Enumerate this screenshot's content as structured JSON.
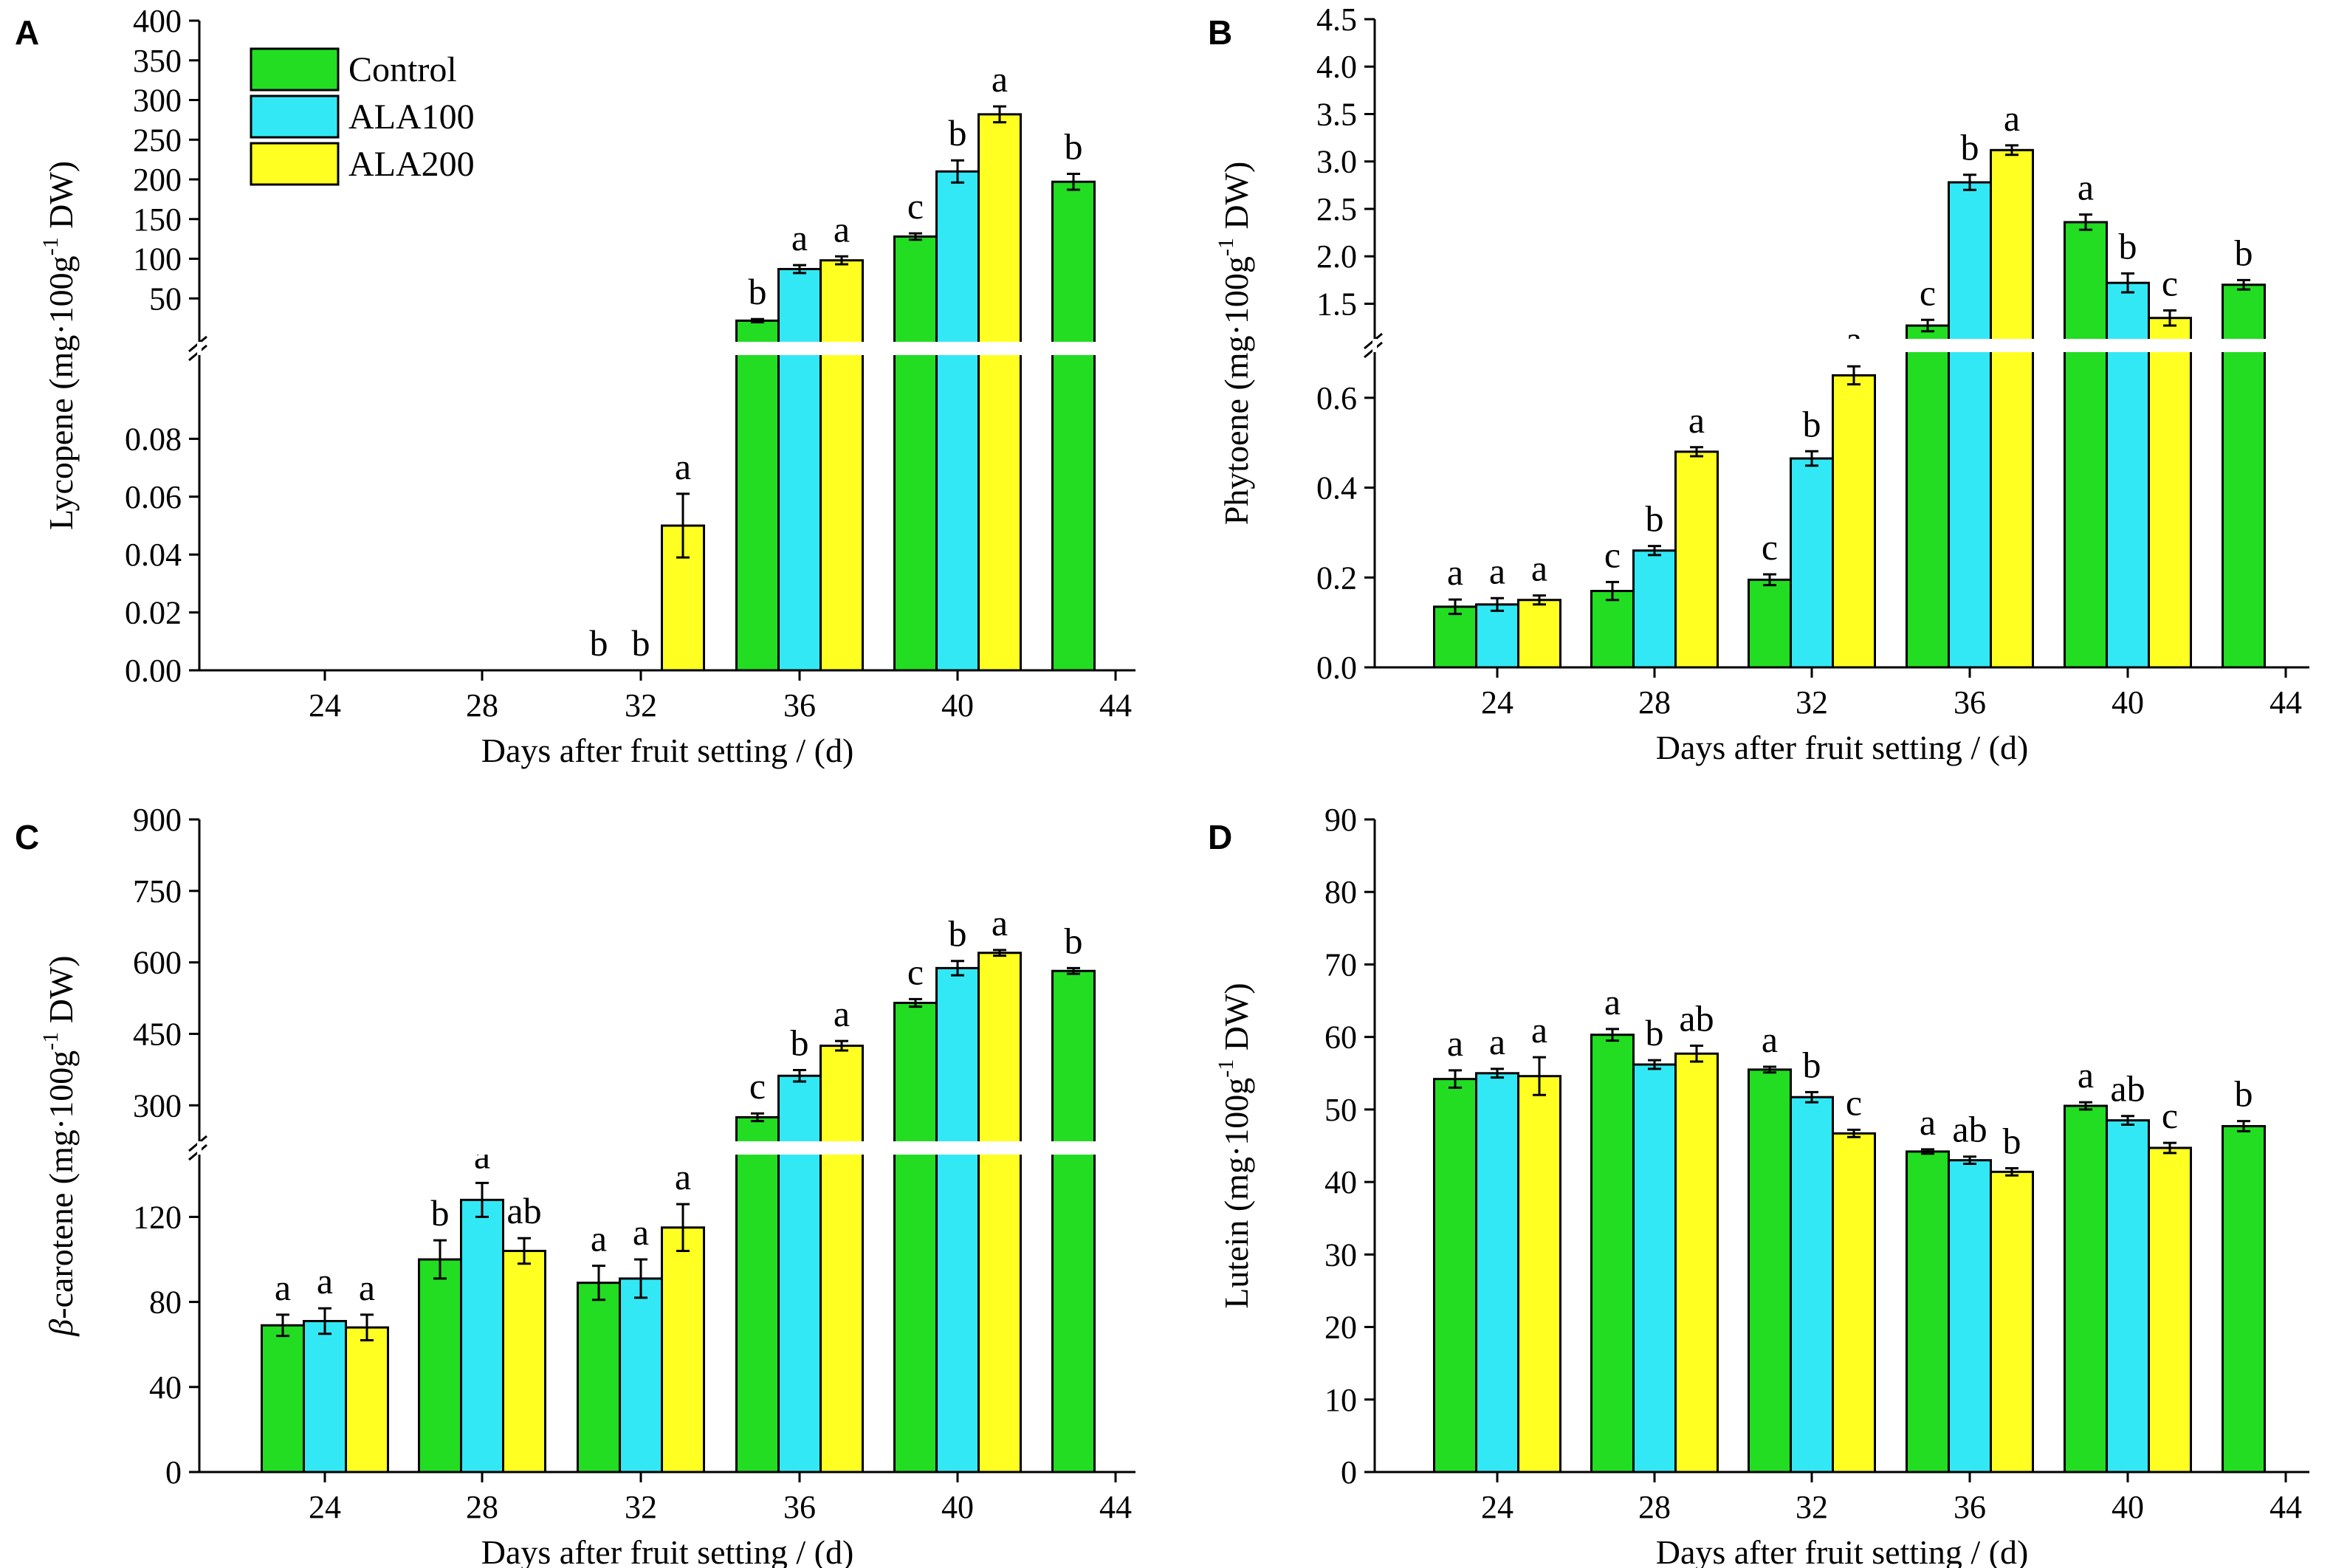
{
  "legend": [
    {
      "label": "Control",
      "color": "#22dd22"
    },
    {
      "label": "ALA100",
      "color": "#33e8f5"
    },
    {
      "label": "ALA200",
      "color": "#ffff22"
    }
  ],
  "chart_data": [
    {
      "panel": "A",
      "type": "bar",
      "categories": [
        "24",
        "28",
        "32",
        "36",
        "40",
        "44"
      ],
      "xlabel": "Days after fruit setting / (d)",
      "ylabel": "Lycopene (mg·100g-1 DW)",
      "ylabel_parts": {
        "main": "Lycopene (mg·100g",
        "sup": "-1",
        "tail": " DW)"
      },
      "axis_break": true,
      "lower_ylim": [
        0,
        0.1
      ],
      "lower_ticks": [
        "0.00",
        "0.02",
        "0.04",
        "0.06",
        "0.08"
      ],
      "upper_ylim": [
        0,
        400
      ],
      "upper_ticks": [
        "50",
        "100",
        "150",
        "200",
        "250",
        "300",
        "350",
        "400"
      ],
      "series": [
        {
          "name": "Control",
          "values": [
            null,
            null,
            0,
            22,
            128,
            197
          ],
          "errors": [
            0,
            0,
            0,
            2,
            4,
            10
          ],
          "letters": [
            "",
            "",
            "b",
            "b",
            "c",
            "b"
          ]
        },
        {
          "name": "ALA100",
          "values": [
            null,
            null,
            0,
            87,
            210,
            null
          ],
          "errors": [
            0,
            0,
            0,
            5,
            14,
            0
          ],
          "letters": [
            "",
            "",
            "b",
            "a",
            "b",
            ""
          ]
        },
        {
          "name": "ALA200",
          "values": [
            null,
            null,
            0.05,
            98,
            282,
            null
          ],
          "errors": [
            0,
            0,
            0.011,
            5,
            10,
            0
          ],
          "letters": [
            "",
            "",
            "a",
            "a",
            "a",
            ""
          ]
        }
      ]
    },
    {
      "panel": "B",
      "type": "bar",
      "categories": [
        "24",
        "28",
        "32",
        "36",
        "40",
        "44"
      ],
      "xlabel": "Days after fruit setting / (d)",
      "ylabel": "Phytoene (mg·100g-1 DW)",
      "ylabel_parts": {
        "main": "Phytoene (mg·100g",
        "sup": "-1",
        "tail": " DW)"
      },
      "axis_break": true,
      "lower_ylim": [
        0,
        0.7
      ],
      "lower_ticks": [
        "0.0",
        "0.2",
        "0.4",
        "0.6"
      ],
      "upper_ylim": [
        1.2,
        4.5
      ],
      "upper_ticks": [
        "1.5",
        "2.0",
        "2.5",
        "3.0",
        "3.5",
        "4.0",
        "4.5"
      ],
      "series": [
        {
          "name": "Control",
          "values": [
            0.135,
            0.17,
            0.195,
            1.27,
            2.36,
            1.7
          ],
          "errors": [
            0.016,
            0.02,
            0.012,
            0.06,
            0.08,
            0.05
          ],
          "letters": [
            "a",
            "c",
            "c",
            "c",
            "a",
            "b"
          ]
        },
        {
          "name": "ALA100",
          "values": [
            0.14,
            0.26,
            0.465,
            2.78,
            1.72,
            null
          ],
          "errors": [
            0.014,
            0.01,
            0.016,
            0.08,
            0.1,
            0
          ],
          "letters": [
            "a",
            "b",
            "b",
            "b",
            "b",
            ""
          ]
        },
        {
          "name": "ALA200",
          "values": [
            0.15,
            0.48,
            0.65,
            3.12,
            1.35,
            null
          ],
          "errors": [
            0.01,
            0.01,
            0.02,
            0.05,
            0.08,
            0
          ],
          "letters": [
            "a",
            "a",
            "a",
            "a",
            "c",
            ""
          ]
        }
      ]
    },
    {
      "panel": "C",
      "type": "bar",
      "categories": [
        "24",
        "28",
        "32",
        "36",
        "40",
        "44"
      ],
      "xlabel": "Days after fruit setting / (d)",
      "ylabel": "β-carotene (mg·100g-1 DW)",
      "ylabel_parts": {
        "italic": "β",
        "main": "-carotene (mg·100g",
        "sup": "-1",
        "tail": " DW)"
      },
      "axis_break": true,
      "lower_ylim": [
        0,
        150
      ],
      "lower_ticks": [
        "0",
        "40",
        "80",
        "120"
      ],
      "upper_ylim": [
        240,
        900
      ],
      "upper_ticks": [
        "300",
        "450",
        "600",
        "750",
        "900"
      ],
      "series": [
        {
          "name": "Control",
          "values": [
            69,
            100,
            89,
            275,
            515,
            582
          ],
          "errors": [
            5,
            9,
            8,
            8,
            8,
            6
          ],
          "letters": [
            "a",
            "b",
            "a",
            "c",
            "c",
            "b"
          ]
        },
        {
          "name": "ALA100",
          "values": [
            71,
            128,
            91,
            362,
            588,
            null
          ],
          "errors": [
            6,
            8,
            9,
            12,
            15,
            0
          ],
          "letters": [
            "a",
            "a",
            "a",
            "b",
            "b",
            ""
          ]
        },
        {
          "name": "ALA200",
          "values": [
            68,
            104,
            115,
            425,
            620,
            null
          ],
          "errors": [
            6,
            6,
            11,
            10,
            6,
            0
          ],
          "letters": [
            "a",
            "ab",
            "a",
            "a",
            "a",
            ""
          ]
        }
      ]
    },
    {
      "panel": "D",
      "type": "bar",
      "categories": [
        "24",
        "28",
        "32",
        "36",
        "40",
        "44"
      ],
      "xlabel": "Days after fruit setting / (d)",
      "ylabel": "Lutein (mg·100g-1 DW)",
      "ylabel_parts": {
        "main": "Lutein (mg·100g",
        "sup": "-1",
        "tail": " DW)"
      },
      "axis_break": false,
      "ylim": [
        0,
        90
      ],
      "ticks": [
        "0",
        "10",
        "20",
        "30",
        "40",
        "50",
        "60",
        "70",
        "80",
        "90"
      ],
      "series": [
        {
          "name": "Control",
          "values": [
            54.2,
            60.3,
            55.5,
            44.2,
            50.5,
            47.7
          ],
          "errors": [
            1.2,
            0.8,
            0.4,
            0.3,
            0.5,
            0.7
          ],
          "letters": [
            "a",
            "a",
            "a",
            "a",
            "a",
            "b"
          ]
        },
        {
          "name": "ALA100",
          "values": [
            55,
            56.2,
            51.7,
            43,
            48.5,
            null
          ],
          "errors": [
            0.6,
            0.6,
            0.7,
            0.5,
            0.6,
            0
          ],
          "letters": [
            "a",
            "b",
            "b",
            "ab",
            "ab",
            ""
          ]
        },
        {
          "name": "ALA200",
          "values": [
            54.6,
            57.7,
            46.7,
            41.4,
            44.7,
            null
          ],
          "errors": [
            2.6,
            1.1,
            0.5,
            0.5,
            0.7,
            0
          ],
          "letters": [
            "a",
            "ab",
            "c",
            "b",
            "c",
            ""
          ]
        }
      ]
    }
  ]
}
